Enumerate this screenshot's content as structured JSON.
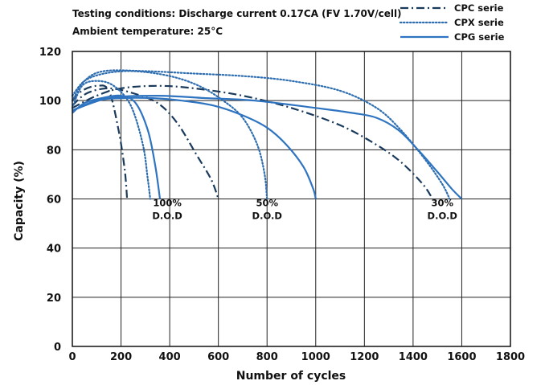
{
  "chart_data": {
    "type": "line",
    "title": "",
    "xlabel": "Number of cycles",
    "ylabel": "Capacity (%)",
    "xlim": [
      0,
      1800
    ],
    "ylim": [
      0,
      120
    ],
    "xticks": [
      0,
      200,
      400,
      600,
      800,
      1000,
      1200,
      1400,
      1600,
      1800
    ],
    "yticks": [
      0,
      20,
      40,
      60,
      80,
      100,
      120
    ],
    "grid": true,
    "legend_position": "top-right",
    "annotations": [
      {
        "id": "cond1",
        "text": "Testing conditions: Discharge current 0.17CA (FV 1.70V/cell)"
      },
      {
        "id": "cond2",
        "text": "Ambient temperature: 25°C"
      },
      {
        "id": "dod100",
        "lines": [
          "100%",
          "D.O.D"
        ],
        "x": 390,
        "y": 57
      },
      {
        "id": "dod50",
        "lines": [
          "50%",
          "D.O.D"
        ],
        "x": 800,
        "y": 57
      },
      {
        "id": "dod30",
        "lines": [
          "30%",
          "D.O.D"
        ],
        "x": 1520,
        "y": 57
      }
    ],
    "series": [
      {
        "name": "CPC serie",
        "style": "dashdot",
        "color": "#1a3a5c",
        "curves": [
          {
            "label": "100% D.O.D",
            "points": [
              [
                0,
                100
              ],
              [
                40,
                104
              ],
              [
                100,
                106
              ],
              [
                150,
                104
              ],
              [
                190,
                88
              ],
              [
                215,
                72
              ],
              [
                225,
                60
              ]
            ]
          },
          {
            "label": "50% D.O.D",
            "points": [
              [
                0,
                98
              ],
              [
                60,
                103
              ],
              [
                150,
                105
              ],
              [
                250,
                103
              ],
              [
                350,
                99
              ],
              [
                430,
                91
              ],
              [
                510,
                78
              ],
              [
                570,
                68
              ],
              [
                600,
                60
              ]
            ]
          },
          {
            "label": "30% D.O.D",
            "points": [
              [
                0,
                97
              ],
              [
                100,
                102
              ],
              [
                200,
                105
              ],
              [
                350,
                106
              ],
              [
                500,
                105
              ],
              [
                700,
                102
              ],
              [
                900,
                97
              ],
              [
                1100,
                90
              ],
              [
                1250,
                82
              ],
              [
                1350,
                75
              ],
              [
                1440,
                66
              ],
              [
                1480,
                60
              ]
            ]
          }
        ]
      },
      {
        "name": "CPX serie",
        "style": "dotted",
        "color": "#2e6eb0",
        "curves": [
          {
            "label": "100% D.O.D",
            "points": [
              [
                0,
                97
              ],
              [
                40,
                106
              ],
              [
                100,
                108
              ],
              [
                170,
                106
              ],
              [
                240,
                98
              ],
              [
                290,
                82
              ],
              [
                310,
                68
              ],
              [
                320,
                60
              ]
            ]
          },
          {
            "label": "50% D.O.D",
            "points": [
              [
                0,
                102
              ],
              [
                50,
                108
              ],
              [
                130,
                111
              ],
              [
                250,
                112
              ],
              [
                400,
                110
              ],
              [
                520,
                106
              ],
              [
                620,
                100
              ],
              [
                700,
                93
              ],
              [
                760,
                82
              ],
              [
                790,
                70
              ],
              [
                800,
                60
              ]
            ]
          },
          {
            "label": "30% D.O.D",
            "points": [
              [
                0,
                100
              ],
              [
                50,
                108
              ],
              [
                130,
                112
              ],
              [
                300,
                112
              ],
              [
                500,
                111
              ],
              [
                700,
                110
              ],
              [
                900,
                108
              ],
              [
                1100,
                104
              ],
              [
                1250,
                97
              ],
              [
                1350,
                88
              ],
              [
                1450,
                76
              ],
              [
                1520,
                66
              ],
              [
                1550,
                60
              ]
            ]
          }
        ]
      },
      {
        "name": "CPG serie",
        "style": "solid",
        "color": "#2f74c0",
        "curves": [
          {
            "label": "100% D.O.D",
            "points": [
              [
                0,
                95
              ],
              [
                50,
                99
              ],
              [
                120,
                101
              ],
              [
                200,
                102
              ],
              [
                260,
                99
              ],
              [
                310,
                88
              ],
              [
                340,
                74
              ],
              [
                360,
                60
              ]
            ]
          },
          {
            "label": "50% D.O.D",
            "points": [
              [
                0,
                96
              ],
              [
                100,
                100
              ],
              [
                200,
                101
              ],
              [
                330,
                101
              ],
              [
                450,
                100
              ],
              [
                580,
                98
              ],
              [
                700,
                94
              ],
              [
                800,
                89
              ],
              [
                880,
                82
              ],
              [
                950,
                73
              ],
              [
                990,
                64
              ],
              [
                1000,
                60
              ]
            ]
          },
          {
            "label": "30% D.O.D",
            "points": [
              [
                0,
                96
              ],
              [
                150,
                101
              ],
              [
                350,
                102
              ],
              [
                550,
                101
              ],
              [
                750,
                100
              ],
              [
                1000,
                97
              ],
              [
                1150,
                95
              ],
              [
                1250,
                93
              ],
              [
                1340,
                88
              ],
              [
                1420,
                80
              ],
              [
                1500,
                71
              ],
              [
                1560,
                64
              ],
              [
                1600,
                60
              ]
            ]
          }
        ]
      }
    ]
  }
}
